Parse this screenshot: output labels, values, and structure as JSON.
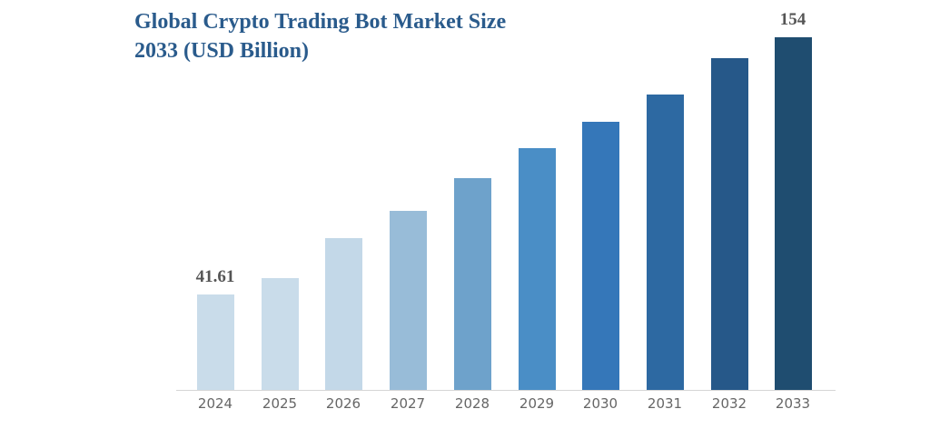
{
  "chart_data": {
    "type": "bar",
    "title": "Global Crypto Trading Bot Market Size 2033 (USD Billion)",
    "title_lines": [
      "Global Crypto Trading Bot Market Size",
      "2033 (USD Billion)"
    ],
    "xlabel": "",
    "ylabel": "USD Billion",
    "categories": [
      "2024",
      "2025",
      "2026",
      "2027",
      "2028",
      "2029",
      "2030",
      "2031",
      "2032",
      "2033"
    ],
    "values": [
      41.61,
      48.8,
      66.3,
      78.2,
      92.5,
      105.6,
      117.0,
      129.0,
      144.8,
      154
    ],
    "data_labels": {
      "2024": "41.61",
      "2033": "154"
    },
    "colors": [
      "#c9dcea",
      "#c9dcea",
      "#c3d8e8",
      "#98bcd8",
      "#6ea2cb",
      "#4a8ec6",
      "#3577b9",
      "#2d69a2",
      "#265889",
      "#1f4d70"
    ],
    "ylim": [
      0,
      160
    ],
    "grid": false,
    "legend": null
  }
}
